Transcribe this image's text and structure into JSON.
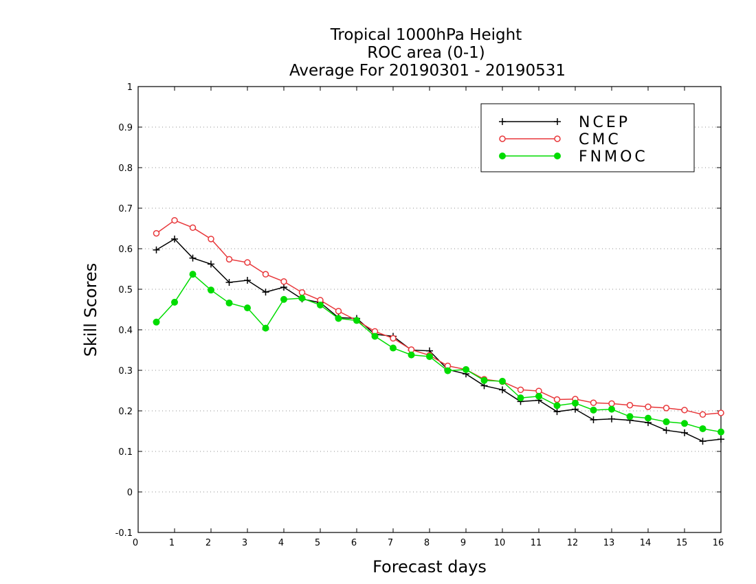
{
  "chart_data": {
    "type": "line",
    "title": [
      "Tropical 1000hPa Height",
      "ROC area (0-1)",
      "Average For 20190301 - 20190531"
    ],
    "xlabel": "Forecast days",
    "ylabel": "Skill Scores",
    "xlim": [
      0,
      16
    ],
    "ylim": [
      -0.1,
      1
    ],
    "xticks": [
      0,
      1,
      2,
      3,
      4,
      5,
      6,
      7,
      8,
      9,
      10,
      11,
      12,
      13,
      14,
      15,
      16
    ],
    "yticks": [
      -0.1,
      0,
      0.1,
      0.2,
      0.3,
      0.4,
      0.5,
      0.6,
      0.7,
      0.8,
      0.9,
      1
    ],
    "ytick_labels": [
      "-0.1",
      "0",
      "0.1",
      "0.2",
      "0.3",
      "0.4",
      "0.5",
      "0.6",
      "0.7",
      "0.8",
      "0.9",
      "1"
    ],
    "grid": "horizontal-dotted",
    "legend_position": "top-right",
    "x": [
      0.5,
      1,
      1.5,
      2,
      2.5,
      3,
      3.5,
      4,
      4.5,
      5,
      5.5,
      6,
      6.5,
      7,
      7.5,
      8,
      8.5,
      9,
      9.5,
      10,
      10.5,
      11,
      11.5,
      12,
      12.5,
      13,
      13.5,
      14,
      14.5,
      15,
      15.5,
      16
    ],
    "series": [
      {
        "name": "NCEP",
        "color": "#000000",
        "marker": "plus",
        "values": [
          0.597,
          0.624,
          0.577,
          0.562,
          0.517,
          0.522,
          0.493,
          0.505,
          0.476,
          0.467,
          0.43,
          0.428,
          0.389,
          0.384,
          0.35,
          0.348,
          0.302,
          0.291,
          0.262,
          0.252,
          0.223,
          0.226,
          0.198,
          0.204,
          0.178,
          0.18,
          0.177,
          0.171,
          0.152,
          0.146,
          0.125,
          0.13
        ]
      },
      {
        "name": "CMC",
        "color": "#e8373a",
        "marker": "open-circle",
        "values": [
          0.638,
          0.67,
          0.652,
          0.624,
          0.574,
          0.566,
          0.537,
          0.519,
          0.492,
          0.473,
          0.446,
          0.423,
          0.396,
          0.379,
          0.351,
          0.337,
          0.311,
          0.302,
          0.278,
          0.272,
          0.252,
          0.249,
          0.228,
          0.229,
          0.22,
          0.218,
          0.214,
          0.21,
          0.207,
          0.202,
          0.191,
          0.195
        ]
      },
      {
        "name": "FNMOC",
        "color": "#00dc00",
        "marker": "filled-circle",
        "values": [
          0.419,
          0.468,
          0.537,
          0.498,
          0.466,
          0.454,
          0.404,
          0.475,
          0.478,
          0.461,
          0.428,
          0.423,
          0.384,
          0.355,
          0.338,
          0.334,
          0.299,
          0.302,
          0.275,
          0.273,
          0.232,
          0.236,
          0.213,
          0.219,
          0.202,
          0.204,
          0.186,
          0.182,
          0.173,
          0.169,
          0.156,
          0.148
        ]
      }
    ]
  }
}
